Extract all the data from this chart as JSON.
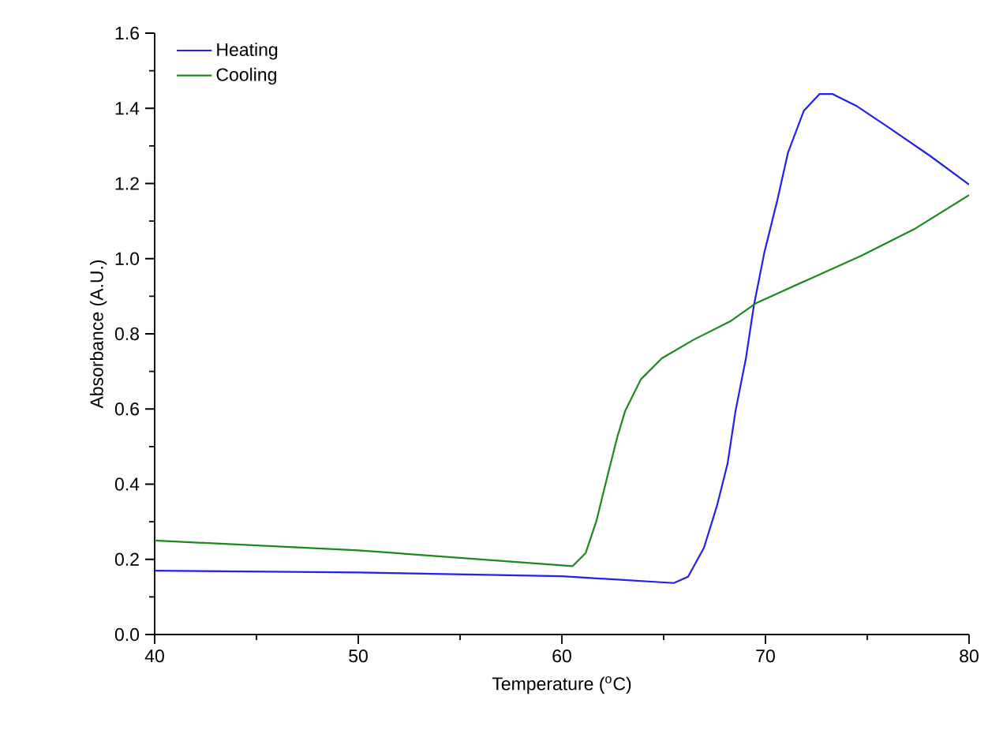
{
  "chart_data": {
    "type": "line",
    "xlabel": "Temperature ($^{o}$C)",
    "ylabel": "Absorbance (A.U.)",
    "xlim": [
      40,
      80
    ],
    "ylim": [
      0,
      1.6
    ],
    "xticks": [
      40,
      50,
      60,
      70,
      80
    ],
    "yticks": [
      {
        "value": 0,
        "label": "0.0"
      },
      0.2,
      0.4,
      0.6,
      0.8,
      {
        "value": 1,
        "label": "1.0"
      },
      1.2,
      1.4,
      1.6
    ],
    "legend": "top left",
    "series": [
      {
        "name": "Heating",
        "color": "#2020f0",
        "x": [
          40,
          50,
          60,
          65.5,
          66.2,
          66.98,
          67.62,
          68.14,
          68.53,
          69.04,
          69.43,
          69.94,
          70.58,
          71.1,
          71.88,
          72.65,
          73.3,
          74.45,
          76.0,
          78.07,
          80
        ],
        "values": [
          0.17,
          0.165,
          0.155,
          0.137,
          0.154,
          0.231,
          0.343,
          0.455,
          0.595,
          0.735,
          0.875,
          1.015,
          1.155,
          1.281,
          1.393,
          1.438,
          1.438,
          1.407,
          1.351,
          1.274,
          1.197
        ]
      },
      {
        "name": "Cooling",
        "color": "#1a8a1a",
        "x": [
          40,
          50,
          60.53,
          61.17,
          61.69,
          62.2,
          62.72,
          63.11,
          63.88,
          64.91,
          66.46,
          68.26,
          69.55,
          72.13,
          74.71,
          77.29,
          80
        ],
        "values": [
          0.25,
          0.224,
          0.182,
          0.217,
          0.301,
          0.413,
          0.525,
          0.595,
          0.679,
          0.735,
          0.784,
          0.833,
          0.882,
          0.945,
          1.008,
          1.078,
          1.169
        ]
      }
    ]
  }
}
